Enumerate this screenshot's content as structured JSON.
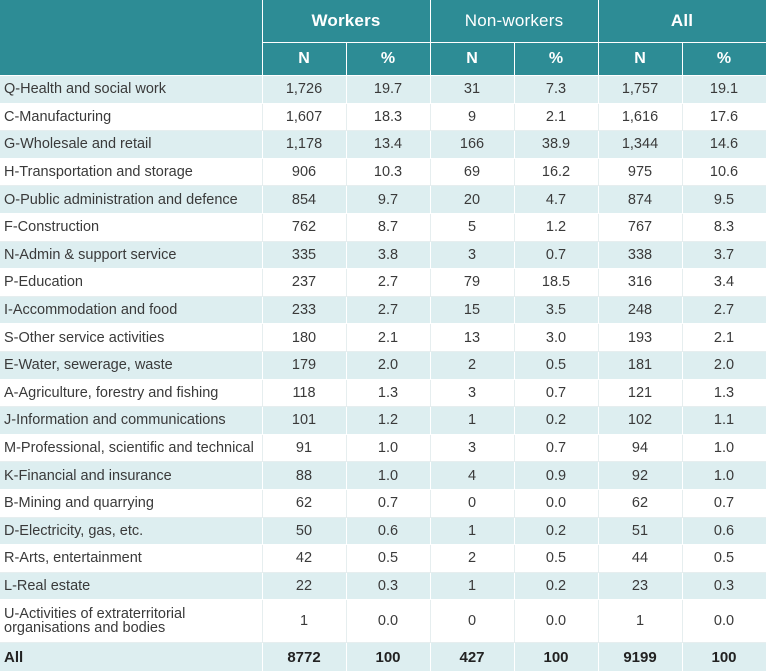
{
  "header": {
    "groups": [
      "Workers",
      "Non-workers",
      "All"
    ],
    "sub": [
      "N",
      "%",
      "N",
      "%",
      "N",
      "%"
    ]
  },
  "rows": [
    {
      "label": "Q-Health and social work",
      "wn": "1,726",
      "wp": "19.7",
      "nn": "31",
      "np": "7.3",
      "an": "1,757",
      "ap": "19.1"
    },
    {
      "label": "C-Manufacturing",
      "wn": "1,607",
      "wp": "18.3",
      "nn": "9",
      "np": "2.1",
      "an": "1,616",
      "ap": "17.6"
    },
    {
      "label": "G-Wholesale and retail",
      "wn": "1,178",
      "wp": "13.4",
      "nn": "166",
      "np": "38.9",
      "an": "1,344",
      "ap": "14.6"
    },
    {
      "label": "H-Transportation and storage",
      "wn": "906",
      "wp": "10.3",
      "nn": "69",
      "np": "16.2",
      "an": "975",
      "ap": "10.6"
    },
    {
      "label": "O-Public administration and defence",
      "wn": "854",
      "wp": "9.7",
      "nn": "20",
      "np": "4.7",
      "an": "874",
      "ap": "9.5"
    },
    {
      "label": "F-Construction",
      "wn": "762",
      "wp": "8.7",
      "nn": "5",
      "np": "1.2",
      "an": "767",
      "ap": "8.3"
    },
    {
      "label": "N-Admin & support service",
      "wn": "335",
      "wp": "3.8",
      "nn": "3",
      "np": "0.7",
      "an": "338",
      "ap": "3.7"
    },
    {
      "label": "P-Education",
      "wn": "237",
      "wp": "2.7",
      "nn": "79",
      "np": "18.5",
      "an": "316",
      "ap": "3.4"
    },
    {
      "label": "I-Accommodation and food",
      "wn": "233",
      "wp": "2.7",
      "nn": "15",
      "np": "3.5",
      "an": "248",
      "ap": "2.7"
    },
    {
      "label": "S-Other service activities",
      "wn": "180",
      "wp": "2.1",
      "nn": "13",
      "np": "3.0",
      "an": "193",
      "ap": "2.1"
    },
    {
      "label": "E-Water, sewerage, waste",
      "wn": "179",
      "wp": "2.0",
      "nn": "2",
      "np": "0.5",
      "an": "181",
      "ap": "2.0"
    },
    {
      "label": "A-Agriculture, forestry and fishing",
      "wn": "118",
      "wp": "1.3",
      "nn": "3",
      "np": "0.7",
      "an": "121",
      "ap": "1.3"
    },
    {
      "label": "J-Information and communications",
      "wn": "101",
      "wp": "1.2",
      "nn": "1",
      "np": "0.2",
      "an": "102",
      "ap": "1.1"
    },
    {
      "label": "M-Professional, scientific and technical",
      "wn": "91",
      "wp": "1.0",
      "nn": "3",
      "np": "0.7",
      "an": "94",
      "ap": "1.0"
    },
    {
      "label": "K-Financial and insurance",
      "wn": "88",
      "wp": "1.0",
      "nn": "4",
      "np": "0.9",
      "an": "92",
      "ap": "1.0"
    },
    {
      "label": "B-Mining and quarrying",
      "wn": "62",
      "wp": "0.7",
      "nn": "0",
      "np": "0.0",
      "an": "62",
      "ap": "0.7"
    },
    {
      "label": "D-Electricity, gas, etc.",
      "wn": "50",
      "wp": "0.6",
      "nn": "1",
      "np": "0.2",
      "an": "51",
      "ap": "0.6"
    },
    {
      "label": "R-Arts, entertainment",
      "wn": "42",
      "wp": "0.5",
      "nn": "2",
      "np": "0.5",
      "an": "44",
      "ap": "0.5"
    },
    {
      "label": "L-Real estate",
      "wn": "22",
      "wp": "0.3",
      "nn": "1",
      "np": "0.2",
      "an": "23",
      "ap": "0.3"
    },
    {
      "label": "U-Activities of extraterritorial organisations and bodies",
      "wn": "1",
      "wp": "0.0",
      "nn": "0",
      "np": "0.0",
      "an": "1",
      "ap": "0.0"
    }
  ],
  "total": {
    "label": "All",
    "wn": "8772",
    "wp": "100",
    "nn": "427",
    "np": "100",
    "an": "9199",
    "ap": "100"
  },
  "colors": {
    "header_bg": "#2d8c95",
    "band_bg": "#ddeef0"
  }
}
